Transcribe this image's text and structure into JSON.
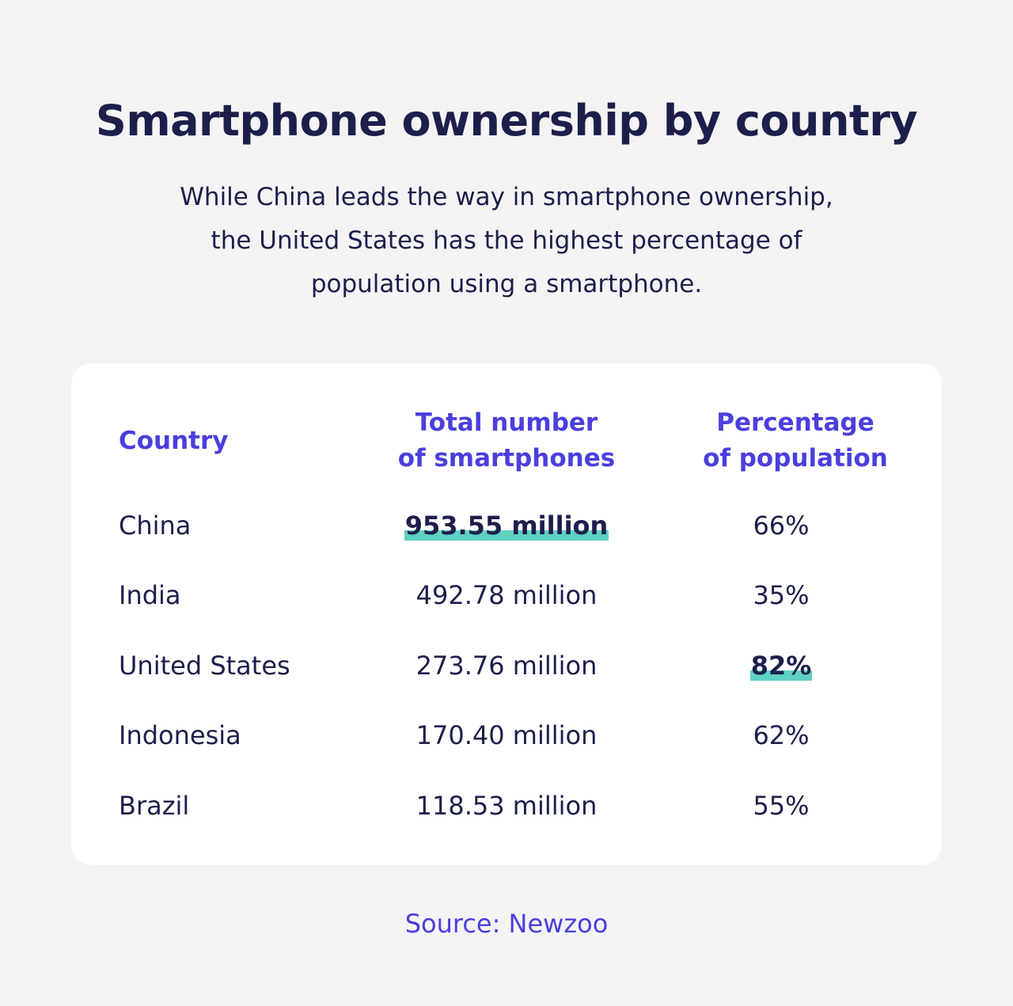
{
  "header": {
    "title": "Smartphone ownership by country",
    "subtitle_lines": [
      "While China leads the way in smartphone ownership,",
      "the United States has the highest percentage of",
      "population using a smartphone."
    ]
  },
  "footer": {
    "source": "Source: Newzoo"
  },
  "colors": {
    "background": "#f4f4f5",
    "card": "#ffffff",
    "text": "#1c1f4a",
    "accent": "#4a3fdc",
    "highlight": "#5ed1c1"
  },
  "chart_data": {
    "type": "table",
    "title": "Smartphone ownership by country",
    "columns": [
      {
        "lines": [
          "Country"
        ]
      },
      {
        "lines": [
          "Total number",
          "of smartphones"
        ]
      },
      {
        "lines": [
          "Percentage",
          "of population"
        ]
      }
    ],
    "rows": [
      {
        "country": "China",
        "total": "953.55 million",
        "percent": "66%",
        "highlight_total": true,
        "highlight_percent": false
      },
      {
        "country": "India",
        "total": "492.78 million",
        "percent": "35%",
        "highlight_total": false,
        "highlight_percent": false
      },
      {
        "country": "United States",
        "total": "273.76 million",
        "percent": "82%",
        "highlight_total": false,
        "highlight_percent": true
      },
      {
        "country": "Indonesia",
        "total": "170.40 million",
        "percent": "62%",
        "highlight_total": false,
        "highlight_percent": false
      },
      {
        "country": "Brazil",
        "total": "118.53 million",
        "percent": "55%",
        "highlight_total": false,
        "highlight_percent": false
      }
    ]
  }
}
